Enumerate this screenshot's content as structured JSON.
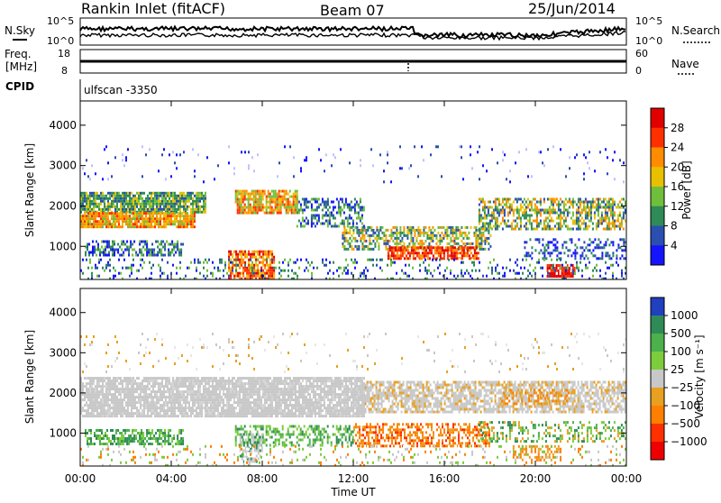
{
  "header": {
    "station": "Rankin Inlet (fitACF)",
    "beam": "Beam 07",
    "date": "25/Jun/2014"
  },
  "noise_panel": {
    "left_label": "N.Sky",
    "right_label": "N.Search",
    "y_ticks_left": [
      "10^5",
      "10^0"
    ],
    "y_ticks_right": [
      "10^5",
      "10^0"
    ]
  },
  "freq_panel": {
    "left_label_top": "Freq.",
    "left_label_unit": "[MHz]",
    "right_label": "Nave",
    "y_ticks_left": [
      "18",
      "8"
    ],
    "y_ticks_right": [
      "60",
      "0"
    ]
  },
  "cpid": {
    "label": "CPID",
    "value": "ulfscan -3350"
  },
  "chart_data": [
    {
      "type": "heatmap",
      "name": "power",
      "ylabel": "Slant Range [km]",
      "ylim": [
        180,
        4600
      ],
      "yticks": [
        "1000",
        "2000",
        "3000",
        "4000"
      ],
      "colorbar": {
        "label": "Power [dB]",
        "ticks": [
          "4",
          "8",
          "12",
          "16",
          "20",
          "24",
          "28"
        ],
        "colors": [
          "#1414ff",
          "#2a4fb0",
          "#2e8b57",
          "#6fbf3c",
          "#e8c000",
          "#ff8c00",
          "#ff3000",
          "#e00000"
        ]
      }
    },
    {
      "type": "heatmap",
      "name": "velocity",
      "ylabel": "Slant Range [km]",
      "ylim": [
        180,
        4600
      ],
      "yticks": [
        "1000",
        "2000",
        "3000",
        "4000"
      ],
      "xlabel": "Time UT",
      "xticks": [
        "00:00",
        "04:00",
        "08:00",
        "12:00",
        "16:00",
        "20:00",
        "00:00"
      ],
      "colorbar": {
        "label": "Velocity [m s⁻¹]",
        "ticks": [
          "1000",
          "500",
          "100",
          "25",
          "−25",
          "−100",
          "−500",
          "−1000"
        ],
        "colors": [
          "#2040c0",
          "#2e8b57",
          "#4cb04c",
          "#7ccc3c",
          "#c8c8c8",
          "#e8a020",
          "#ff7f00",
          "#ff3000",
          "#ee0000"
        ]
      }
    }
  ]
}
